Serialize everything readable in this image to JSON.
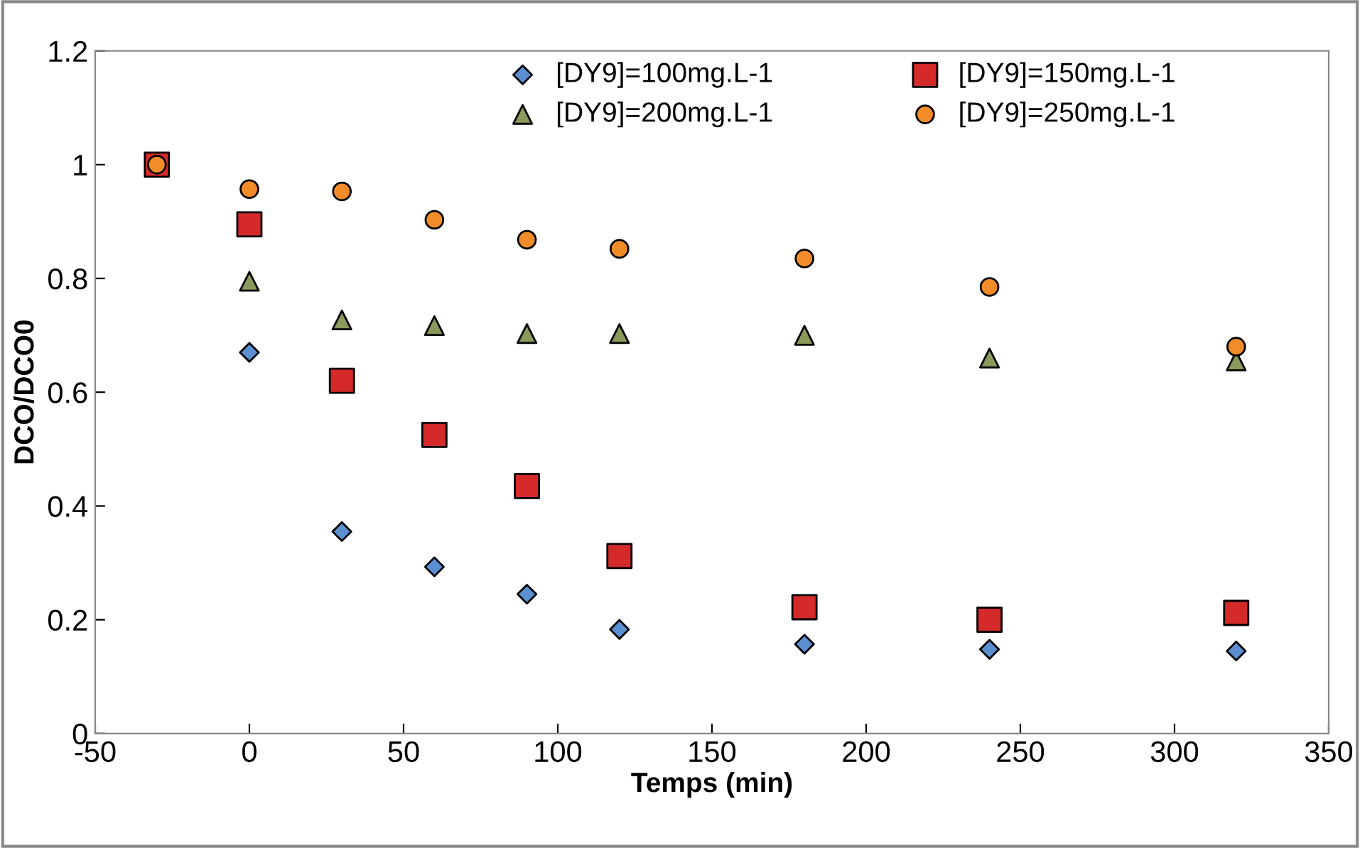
{
  "chart_data": {
    "type": "scatter",
    "xlabel": "Temps (min)",
    "ylabel": "DCO/DCO0",
    "x": [
      -30,
      0,
      30,
      60,
      90,
      120,
      180,
      240,
      320
    ],
    "series": [
      {
        "name": "[DY9]=100mg.L-1",
        "color": "#5b8fd0",
        "marker": "diamond",
        "values": [
          null,
          0.67,
          0.355,
          0.293,
          0.245,
          0.183,
          0.157,
          0.148,
          0.145
        ]
      },
      {
        "name": "[DY9]=150mg.L-1",
        "color": "#d42a2a",
        "marker": "square",
        "values": [
          1.0,
          0.895,
          0.62,
          0.525,
          0.435,
          0.312,
          0.222,
          0.2,
          0.212
        ]
      },
      {
        "name": "[DY9]=200mg.L-1",
        "color": "#8a9a5b",
        "marker": "triangle",
        "values": [
          null,
          0.795,
          0.727,
          0.717,
          0.703,
          0.703,
          0.7,
          0.66,
          0.655
        ]
      },
      {
        "name": "[DY9]=250mg.L-1",
        "color": "#f28c28",
        "marker": "circle",
        "values": [
          1.0,
          0.957,
          0.953,
          0.903,
          0.868,
          0.852,
          0.835,
          0.785,
          0.68
        ]
      }
    ],
    "xlim": [
      -50,
      350
    ],
    "xticks": [
      -50,
      0,
      50,
      100,
      150,
      200,
      250,
      300,
      350
    ],
    "ylim": [
      0,
      1.2
    ],
    "yticks": [
      0,
      {
        "value": 0.2,
        "label": "0.2"
      },
      {
        "value": 0.4,
        "label": "0.4"
      },
      {
        "value": 0.6,
        "label": "0.6"
      },
      {
        "value": 0.8,
        "label": "0.8"
      },
      1,
      {
        "value": 1.2,
        "label": "1.2"
      }
    ],
    "grid": false,
    "legend": "top"
  }
}
